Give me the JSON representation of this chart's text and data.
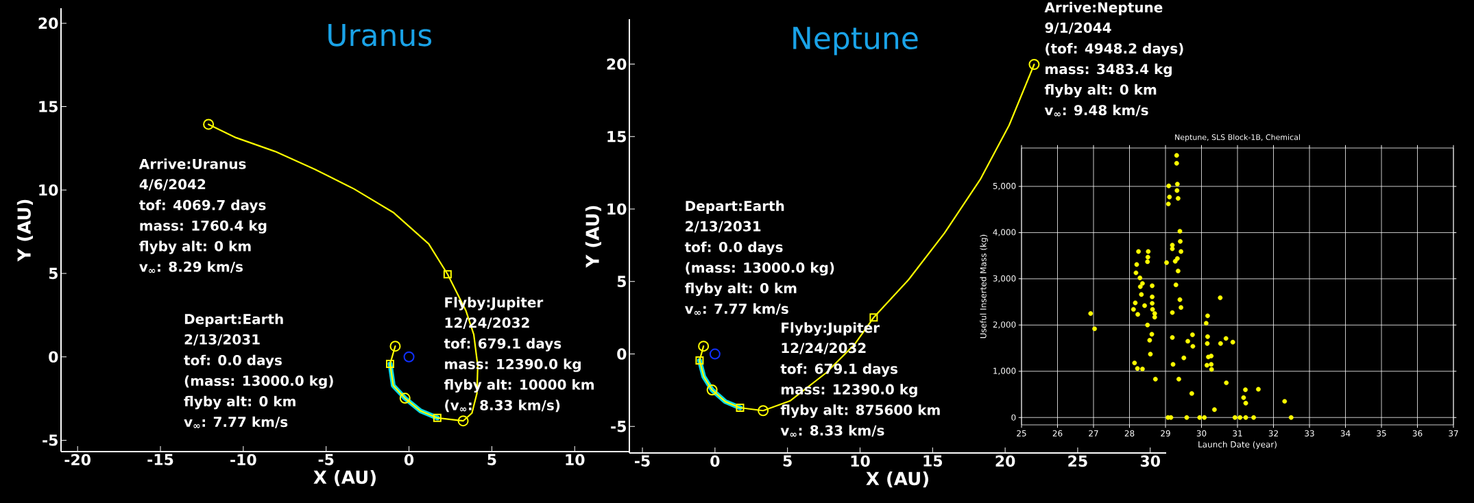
{
  "chart_data": [
    {
      "type": "line",
      "title": "Uranus",
      "xlabel": "X (AU)",
      "ylabel": "Y (AU)",
      "xlim": [
        -21,
        13.3
      ],
      "ylim": [
        -5.68,
        20.9
      ],
      "xticks": [
        -20,
        -15,
        -10,
        -5,
        0,
        5,
        10
      ],
      "yticks": [
        -5,
        0,
        5,
        10,
        15,
        20
      ],
      "grid": false,
      "series": [
        {
          "color": "#00d8e8",
          "x": [
            -1.14,
            -0.95,
            -0.24,
            0.71,
            1.71
          ],
          "values": [
            -0.42,
            -1.72,
            -2.48,
            -3.25,
            -3.66
          ]
        },
        {
          "color": "#ffff00",
          "x": [
            -0.83,
            -1.14,
            -0.95,
            -0.24,
            0.71,
            1.71,
            3.27,
            3.8,
            4.1,
            4.15,
            3.91,
            3.44,
            2.33,
            1.19,
            -0.95,
            -3.32,
            -5.69,
            -8.07,
            -10.44,
            -12.1
          ],
          "values": [
            0.64,
            -0.42,
            -1.72,
            -2.48,
            -3.25,
            -3.66,
            -3.84,
            -3.37,
            -2.19,
            -0.54,
            1.34,
            2.76,
            4.95,
            6.77,
            8.66,
            10.07,
            11.25,
            12.31,
            13.14,
            13.94
          ]
        },
        {
          "type": "scatter",
          "marker": "circle",
          "color": "#ffff00",
          "x": [
            -0.83,
            -0.24,
            3.27,
            -12.1
          ],
          "values": [
            0.64,
            -2.48,
            -3.84,
            13.94
          ]
        },
        {
          "type": "scatter",
          "marker": "square",
          "color": "#ffff00",
          "x": [
            -1.14,
            1.71,
            2.33
          ],
          "values": [
            -0.42,
            -3.66,
            4.95
          ]
        },
        {
          "type": "scatter",
          "marker": "circle",
          "color": "#1030ff",
          "x": [
            0
          ],
          "values": [
            0
          ]
        }
      ],
      "annotations": [
        "Arrive:Uranus",
        "4/6/2042",
        "tof: 4069.7 days",
        "mass: 1760.4 kg",
        "flyby alt: 0 km",
        "v$_{∞}$: 8.29 km/s",
        "Depart:Earth",
        "2/13/2031",
        "tof: 0.0 days",
        "(mass: 13000.0 kg)",
        "flyby alt: 0 km",
        "v$_{∞}$: 7.77 km/s",
        "Flyby:Jupiter",
        "12/24/2032",
        "tof: 679.1 days",
        "mass: 12390.0 kg",
        "flyby alt: 10000 km",
        "(v$_{∞}$: 8.33 km/s)"
      ]
    },
    {
      "type": "line",
      "title": "Neptune",
      "xlabel": "X (AU)",
      "ylabel": "Y (AU)",
      "xlim": [
        -5.9,
        31.1
      ],
      "ylim": [
        -6.83,
        23.1
      ],
      "xticks": [
        -5,
        0,
        5,
        10,
        15,
        20,
        25,
        30
      ],
      "yticks": [
        -5,
        0,
        5,
        10,
        15,
        20
      ],
      "grid": false,
      "series": [
        {
          "color": "#00d8e8",
          "x": [
            -1.06,
            -0.77,
            -0.2,
            0.72,
            1.73
          ],
          "values": [
            -0.45,
            -1.56,
            -2.48,
            -3.29,
            -3.71
          ]
        },
        {
          "color": "#ffff00",
          "x": [
            -0.79,
            -1.06,
            -0.77,
            -0.2,
            0.72,
            1.73,
            3.32,
            5.17,
            7.65,
            9.63,
            10.94,
            13.34,
            15.82,
            18.29,
            20.27,
            22.0
          ],
          "values": [
            0.54,
            -0.45,
            -1.56,
            -2.48,
            -3.29,
            -3.71,
            -3.91,
            -3.24,
            -1.31,
            0.67,
            2.52,
            5.12,
            8.34,
            12.05,
            15.77,
            19.98
          ]
        },
        {
          "type": "scatter",
          "marker": "circle",
          "color": "#ffff00",
          "x": [
            -0.79,
            -0.2,
            3.32,
            22.0
          ],
          "values": [
            0.54,
            -2.48,
            -3.91,
            19.98
          ]
        },
        {
          "type": "scatter",
          "marker": "square",
          "color": "#ffff00",
          "x": [
            -1.06,
            1.73,
            10.94
          ],
          "values": [
            -0.45,
            -3.71,
            2.52
          ]
        },
        {
          "type": "scatter",
          "marker": "circle",
          "color": "#1030ff",
          "x": [
            0
          ],
          "values": [
            0
          ]
        }
      ],
      "annotations": [
        "Arrive:Neptune",
        "9/1/2044",
        "(tof: 4948.2 days)",
        "mass: 3483.4 kg",
        "flyby alt: 0 km",
        "v$_{∞}$: 9.48 km/s",
        "Depart:Earth",
        "2/13/2031",
        "tof: 0.0 days",
        "(mass: 13000.0 kg)",
        "flyby alt: 0 km",
        "v$_{∞}$: 7.77 km/s",
        "Flyby:Jupiter",
        "12/24/2032",
        "tof: 679.1 days",
        "mass: 12390.0 kg",
        "flyby alt: 875600 km",
        "v$_{∞}$: 8.33 km/s"
      ]
    },
    {
      "type": "scatter",
      "title": "Neptune, SLS Block-1B, Chemical",
      "xlabel": "Launch Date (year)",
      "ylabel": "Useful Inserted Mass (kg)",
      "xlim": [
        25,
        37
      ],
      "ylim": [
        -160,
        5830
      ],
      "xticks": [
        25,
        26,
        27,
        28,
        29,
        30,
        31,
        32,
        33,
        34,
        35,
        36,
        37
      ],
      "yticks": [
        0,
        {
          "value": 1000,
          "label": "1,000"
        },
        {
          "value": 2000,
          "label": "2,000"
        },
        {
          "value": 3000,
          "label": "3,000"
        },
        {
          "value": 4000,
          "label": "4,000"
        },
        {
          "value": 5000,
          "label": "5,000"
        }
      ],
      "grid": true,
      "marker": "circle",
      "color": "#ffff00",
      "x": [
        26.92,
        27.03,
        28.25,
        28.2,
        28.18,
        28.29,
        28.3,
        28.36,
        28.33,
        28.16,
        28.11,
        28.23,
        28.42,
        28.52,
        28.51,
        28.5,
        28.63,
        28.63,
        28.63,
        28.64,
        28.7,
        28.7,
        28.5,
        28.62,
        28.56,
        28.58,
        28.14,
        28.22,
        28.36,
        28.72,
        29.09,
        29.11,
        29.08,
        29.31,
        29.31,
        29.33,
        29.32,
        29.35,
        29.4,
        29.19,
        29.19,
        29.41,
        29.43,
        29.33,
        29.03,
        29.27,
        29.35,
        29.29,
        29.4,
        29.43,
        29.19,
        29.19,
        29.21,
        29.37,
        29.07,
        29.15,
        29.59,
        29.51,
        29.62,
        29.75,
        29.76,
        29.73,
        29.95,
        30.08,
        30.36,
        30.17,
        30.13,
        30.17,
        30.16,
        30.19,
        30.27,
        30.15,
        30.27,
        30.28,
        30.52,
        30.53,
        30.68,
        30.87,
        30.69,
        30.93,
        31.07,
        31.23,
        31.45,
        31.22,
        31.17,
        31.23,
        31.58,
        32.31,
        32.49
      ],
      "values": [
        2250,
        1920,
        3590,
        3310,
        3130,
        3020,
        2830,
        2900,
        2660,
        2480,
        2340,
        2230,
        2420,
        3590,
        3470,
        3370,
        2850,
        2610,
        2470,
        2340,
        2250,
        2170,
        2000,
        1800,
        1670,
        1370,
        1180,
        1060,
        1050,
        830,
        5010,
        4770,
        4620,
        5670,
        5500,
        5050,
        4910,
        4740,
        4030,
        3730,
        3650,
        3810,
        3590,
        3440,
        3350,
        3380,
        3170,
        2870,
        2550,
        2380,
        2270,
        1730,
        1150,
        830,
        0,
        0,
        0,
        1290,
        1650,
        1790,
        1540,
        520,
        0,
        0,
        170,
        2200,
        2040,
        1750,
        1600,
        1310,
        1330,
        1130,
        1150,
        1040,
        2590,
        1600,
        1710,
        1630,
        750,
        0,
        0,
        0,
        0,
        600,
        430,
        310,
        610,
        350,
        0
      ]
    }
  ]
}
